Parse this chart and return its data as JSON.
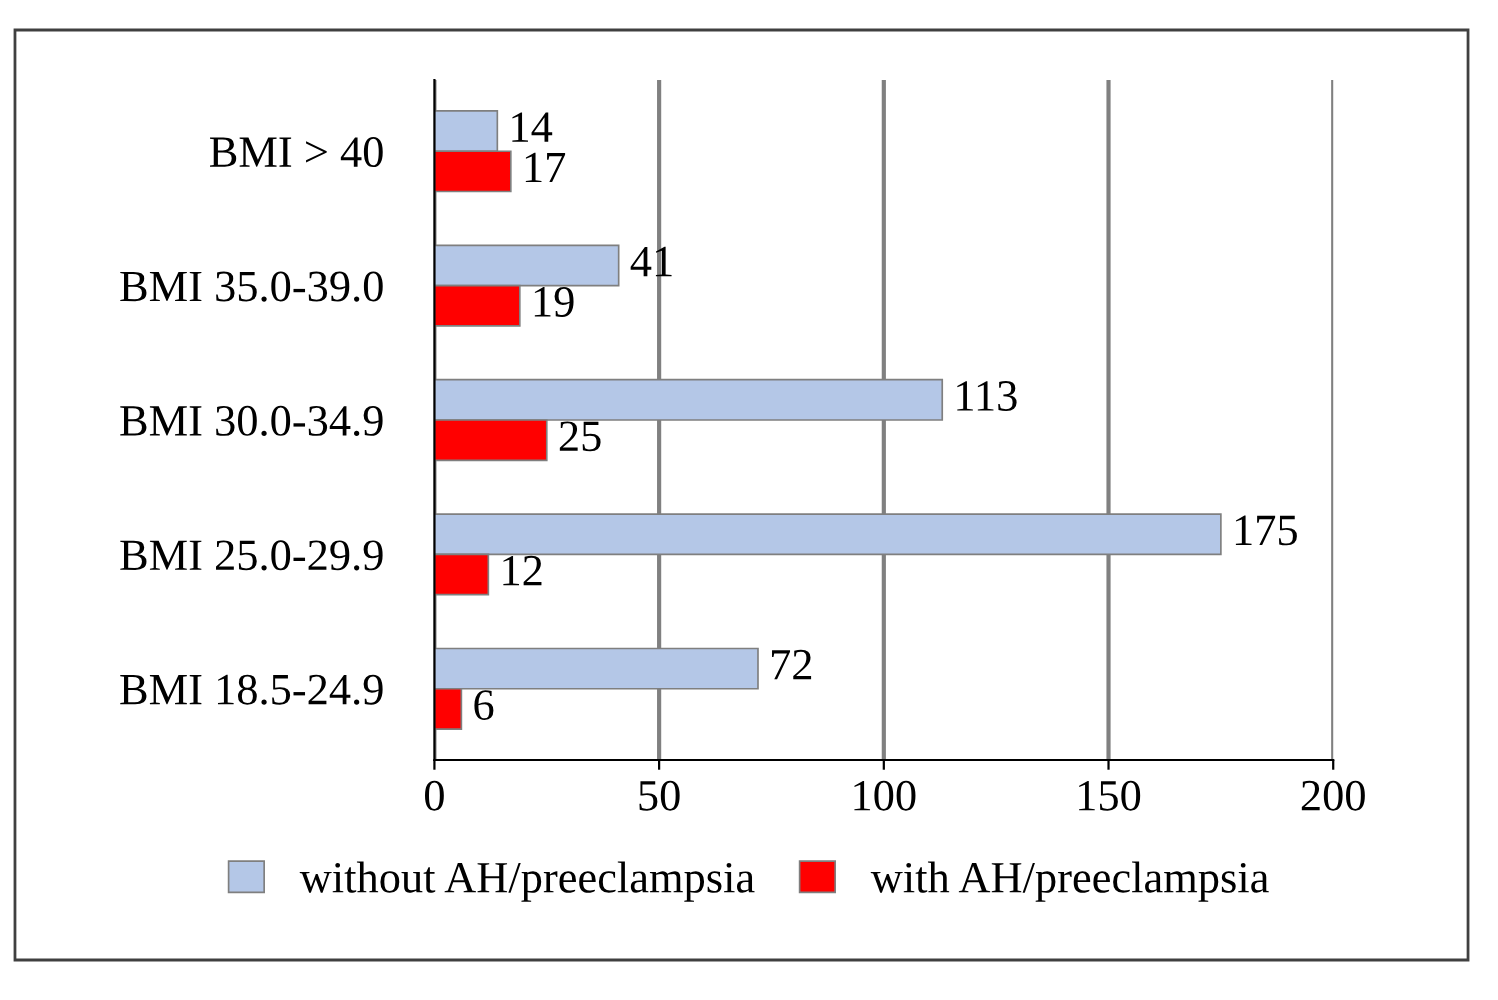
{
  "chart_data": {
    "type": "bar",
    "orientation": "horizontal",
    "categories": [
      "BMI > 40",
      "BMI 35.0-39.0",
      "BMI 30.0-34.9",
      "BMI 25.0-29.9",
      "BMI 18.5-24.9"
    ],
    "series": [
      {
        "name": "without AH/preeclampsia",
        "color": "#b4c7e7",
        "values": [
          14,
          41,
          113,
          175,
          72
        ]
      },
      {
        "name": "with AH/preeclampsia",
        "color": "#ff0000",
        "values": [
          17,
          19,
          25,
          12,
          6
        ]
      }
    ],
    "xlim": [
      0,
      200
    ],
    "xticks": [
      0,
      50,
      100,
      150,
      200
    ],
    "grid": "x",
    "legend": "bottom",
    "data_labels": true
  }
}
